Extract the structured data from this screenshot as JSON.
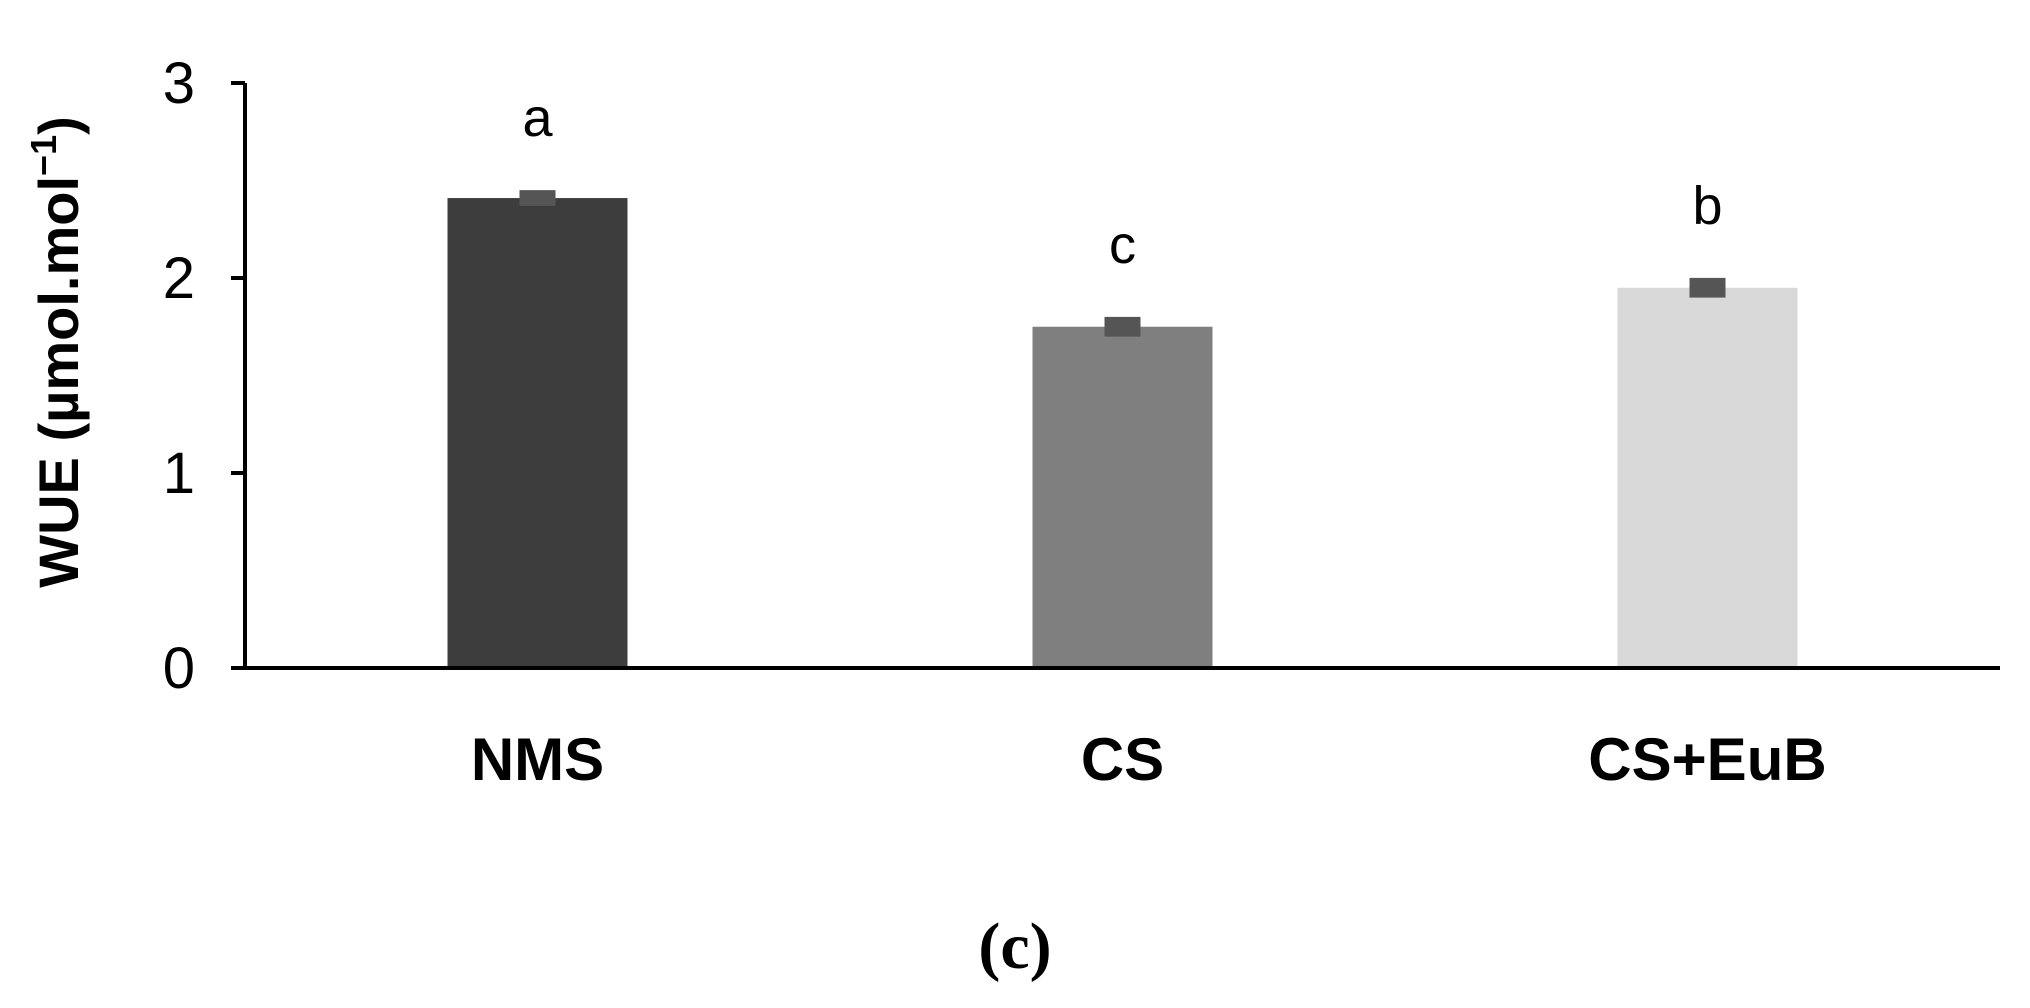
{
  "chart_data": {
    "type": "bar",
    "categories": [
      "NMS",
      "CS",
      "CS+EuB"
    ],
    "values": [
      2.41,
      1.75,
      1.95
    ],
    "errors": [
      0.02,
      0.03,
      0.03
    ],
    "significance": [
      "a",
      "c",
      "b"
    ],
    "colors": [
      "#3d3d3d",
      "#7f7f7f",
      "#d9d9d9"
    ],
    "error_color": "#555555",
    "ylabel_main": "WUE (µmol.mol",
    "ylabel_sup": "−1",
    "ylabel_end": ")",
    "ylim": [
      0,
      3
    ],
    "yticks": [
      0,
      1,
      2,
      3
    ],
    "ytick_labels": [
      "0",
      "1",
      "2",
      "3"
    ],
    "grid": false,
    "legend": "none"
  },
  "panel_label": "(c)"
}
